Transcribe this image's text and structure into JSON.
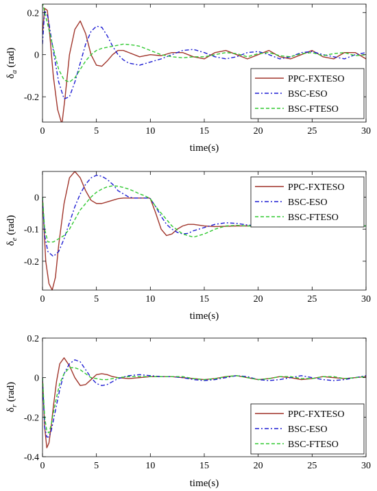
{
  "chart_data": [
    {
      "type": "line",
      "xlabel": "time(s)",
      "ylabel": "δa (rad)",
      "ylabel_main": "δ",
      "ylabel_sub": "a",
      "ylabel_unit": " (rad)",
      "xlim": [
        0,
        30
      ],
      "ylim": [
        -0.32,
        0.24
      ],
      "xticks": [
        0,
        5,
        10,
        15,
        20,
        25,
        30
      ],
      "yticks": [
        0.2,
        0,
        -0.2
      ],
      "ytick_labels": [
        "0.2",
        "0",
        "-0.2"
      ],
      "grid": false,
      "legend": "bottom-right",
      "series": [
        {
          "name": "PPC-FXTESO",
          "color": "#a0342a",
          "dash": "solid",
          "x": [
            0,
            0.2,
            0.45,
            0.7,
            1.0,
            1.4,
            1.8,
            2.1,
            2.5,
            3.0,
            3.5,
            4.0,
            4.5,
            5.0,
            5.5,
            6.0,
            6.5,
            7.0,
            7.5,
            8.0,
            9.0,
            10.0,
            11.0,
            12.0,
            13.0,
            14.0,
            15.0,
            16.0,
            17.0,
            18.0,
            19.0,
            20.0,
            21.0,
            22.0,
            23.0,
            24.0,
            25.0,
            26.0,
            27.0,
            28.0,
            29.0,
            30.0
          ],
          "y": [
            0.1,
            0.22,
            0.21,
            0.08,
            -0.1,
            -0.26,
            -0.33,
            -0.2,
            0.0,
            0.12,
            0.16,
            0.1,
            0.0,
            -0.05,
            -0.055,
            -0.03,
            0.0,
            0.02,
            0.02,
            0.01,
            -0.01,
            0.0,
            -0.005,
            0.01,
            0.01,
            -0.01,
            -0.02,
            0.01,
            0.02,
            0.0,
            -0.02,
            0.0,
            0.02,
            -0.01,
            -0.02,
            0.0,
            0.02,
            -0.01,
            -0.02,
            0.01,
            0.01,
            -0.02
          ]
        },
        {
          "name": "BSC-ESO",
          "color": "#1a1ad2",
          "dash": "6,3,2,3",
          "x": [
            0,
            0.2,
            0.5,
            1.0,
            1.5,
            2.0,
            2.5,
            3.0,
            3.5,
            4.0,
            4.5,
            5.0,
            5.5,
            6.0,
            6.5,
            7.0,
            7.5,
            8.0,
            9.0,
            10.0,
            11.0,
            12.0,
            13.0,
            14.0,
            15.0,
            16.0,
            17.0,
            18.0,
            19.0,
            20.0,
            21.0,
            22.0,
            23.0,
            24.0,
            25.0,
            26.0,
            27.0,
            28.0,
            29.0,
            30.0
          ],
          "y": [
            0.05,
            0.21,
            0.18,
            0.02,
            -0.13,
            -0.21,
            -0.2,
            -0.13,
            -0.04,
            0.05,
            0.11,
            0.135,
            0.13,
            0.09,
            0.04,
            0.0,
            -0.025,
            -0.04,
            -0.05,
            -0.035,
            -0.02,
            0.0,
            0.02,
            0.025,
            0.01,
            -0.01,
            -0.02,
            -0.01,
            0.01,
            0.015,
            0.0,
            -0.02,
            -0.01,
            0.01,
            0.015,
            0.0,
            -0.01,
            -0.02,
            0.0,
            0.01
          ]
        },
        {
          "name": "BSC-FTESO",
          "color": "#2fc82f",
          "dash": "5,3",
          "x": [
            0,
            0.2,
            0.5,
            1.0,
            1.5,
            2.0,
            2.5,
            3.0,
            3.5,
            4.0,
            4.5,
            5.0,
            5.5,
            6.0,
            6.5,
            7.0,
            7.5,
            8.0,
            8.5,
            9.0,
            10.0,
            11.0,
            12.0,
            13.0,
            14.0,
            15.0,
            16.0,
            17.0,
            18.0,
            19.0,
            20.0,
            21.0,
            22.0,
            23.0,
            24.0,
            25.0,
            26.0,
            27.0,
            28.0,
            29.0,
            30.0
          ],
          "y": [
            0.25,
            0.2,
            0.14,
            0.03,
            -0.07,
            -0.12,
            -0.13,
            -0.11,
            -0.07,
            -0.03,
            0.0,
            0.02,
            0.03,
            0.035,
            0.04,
            0.045,
            0.05,
            0.048,
            0.045,
            0.04,
            0.02,
            0.0,
            -0.01,
            -0.015,
            -0.01,
            -0.01,
            0.0,
            0.01,
            0.005,
            -0.01,
            0.005,
            0.01,
            -0.005,
            -0.01,
            0.005,
            0.01,
            -0.005,
            0.005,
            0.01,
            -0.005,
            0.0
          ]
        }
      ]
    },
    {
      "type": "line",
      "xlabel": "time(s)",
      "ylabel": "δe (rad)",
      "ylabel_main": "δ",
      "ylabel_sub": "e",
      "ylabel_unit": " (rad)",
      "xlim": [
        0,
        30
      ],
      "ylim": [
        -0.29,
        0.08
      ],
      "xticks": [
        0,
        5,
        10,
        15,
        20,
        25,
        30
      ],
      "yticks": [
        0,
        -0.1,
        -0.2
      ],
      "ytick_labels": [
        "0",
        "-0.1",
        "-0.2"
      ],
      "grid": false,
      "legend": "top-right",
      "series": [
        {
          "name": "PPC-FXTESO",
          "color": "#a0342a",
          "dash": "solid",
          "x": [
            0,
            0.3,
            0.6,
            0.9,
            1.2,
            1.5,
            2.0,
            2.5,
            3.0,
            3.5,
            4.0,
            4.5,
            5.0,
            5.5,
            6.0,
            6.5,
            7.0,
            7.5,
            8.0,
            8.5,
            9.0,
            9.9,
            10.0,
            10.5,
            11.0,
            11.5,
            12.0,
            12.5,
            13.0,
            13.5,
            14.0,
            15.0,
            16.0,
            18.0,
            20.0,
            22.0,
            25.0,
            28.0,
            30.0
          ],
          "y": [
            0.0,
            -0.2,
            -0.27,
            -0.29,
            -0.25,
            -0.15,
            -0.02,
            0.06,
            0.08,
            0.06,
            0.02,
            -0.01,
            -0.02,
            -0.02,
            -0.015,
            -0.01,
            -0.005,
            -0.003,
            -0.003,
            -0.003,
            -0.003,
            -0.003,
            -0.005,
            -0.05,
            -0.1,
            -0.12,
            -0.115,
            -0.1,
            -0.09,
            -0.085,
            -0.085,
            -0.09,
            -0.092,
            -0.09,
            -0.09,
            -0.09,
            -0.09,
            -0.09,
            -0.09
          ]
        },
        {
          "name": "BSC-ESO",
          "color": "#1a1ad2",
          "dash": "6,3,2,3",
          "x": [
            0,
            0.2,
            0.5,
            1.0,
            1.5,
            2.0,
            2.5,
            3.0,
            3.5,
            4.0,
            4.5,
            5.0,
            5.5,
            6.0,
            6.5,
            7.0,
            7.5,
            8.0,
            8.5,
            9.0,
            9.9,
            10.0,
            10.5,
            11.0,
            11.5,
            12.0,
            12.5,
            13.0,
            13.5,
            14.0,
            15.0,
            16.0,
            17.0,
            18.0,
            19.0,
            20.0,
            22.0,
            25.0,
            28.0,
            30.0
          ],
          "y": [
            0.0,
            -0.12,
            -0.17,
            -0.185,
            -0.17,
            -0.13,
            -0.08,
            -0.03,
            0.01,
            0.04,
            0.06,
            0.068,
            0.065,
            0.055,
            0.04,
            0.02,
            0.01,
            0.0,
            -0.003,
            -0.003,
            -0.003,
            -0.005,
            -0.03,
            -0.06,
            -0.085,
            -0.1,
            -0.11,
            -0.115,
            -0.113,
            -0.105,
            -0.095,
            -0.085,
            -0.08,
            -0.082,
            -0.087,
            -0.09,
            -0.092,
            -0.09,
            -0.09,
            -0.09
          ]
        },
        {
          "name": "BSC-FTESO",
          "color": "#2fc82f",
          "dash": "5,3",
          "x": [
            0,
            0.2,
            0.5,
            1.0,
            1.5,
            2.0,
            2.5,
            3.0,
            3.5,
            4.0,
            4.5,
            5.0,
            5.5,
            6.0,
            6.5,
            7.0,
            7.5,
            8.0,
            8.5,
            9.0,
            9.5,
            10.0,
            10.5,
            11.0,
            11.5,
            12.0,
            13.0,
            14.0,
            15.0,
            16.0,
            17.0,
            18.0,
            19.0,
            20.0,
            22.0,
            25.0,
            28.0,
            30.0
          ],
          "y": [
            0.0,
            -0.1,
            -0.14,
            -0.14,
            -0.13,
            -0.12,
            -0.1,
            -0.07,
            -0.04,
            -0.02,
            0.0,
            0.015,
            0.025,
            0.032,
            0.035,
            0.034,
            0.03,
            0.025,
            0.018,
            0.01,
            0.004,
            -0.005,
            -0.03,
            -0.05,
            -0.07,
            -0.09,
            -0.115,
            -0.125,
            -0.115,
            -0.1,
            -0.09,
            -0.088,
            -0.09,
            -0.09,
            -0.09,
            -0.09,
            -0.09,
            -0.09
          ]
        }
      ]
    },
    {
      "type": "line",
      "xlabel": "time(s)",
      "ylabel": "δr (rad)",
      "ylabel_main": "δ",
      "ylabel_sub": "r",
      "ylabel_unit": " (rad)",
      "xlim": [
        0,
        30
      ],
      "ylim": [
        -0.4,
        0.2
      ],
      "xticks": [
        0,
        5,
        10,
        15,
        20,
        25,
        30
      ],
      "yticks": [
        0.2,
        0,
        -0.2,
        -0.4
      ],
      "ytick_labels": [
        "0.2",
        "0",
        "-0.2",
        "-0.4"
      ],
      "grid": false,
      "legend": "bottom-right",
      "series": [
        {
          "name": "PPC-FXTESO",
          "color": "#a0342a",
          "dash": "solid",
          "x": [
            0,
            0.2,
            0.4,
            0.6,
            0.8,
            1.0,
            1.3,
            1.6,
            2.0,
            2.5,
            3.0,
            3.5,
            4.0,
            4.5,
            5.0,
            5.5,
            6.0,
            6.5,
            7.0,
            8.0,
            9.0,
            10.0,
            11.0,
            12.0,
            13.0,
            14.0,
            15.0,
            16.0,
            17.0,
            18.0,
            19.0,
            20.0,
            21.0,
            22.0,
            23.0,
            24.0,
            25.0,
            26.0,
            27.0,
            28.0,
            29.0,
            30.0
          ],
          "y": [
            0.0,
            -0.25,
            -0.355,
            -0.33,
            -0.25,
            -0.15,
            -0.02,
            0.07,
            0.1,
            0.06,
            0.0,
            -0.04,
            -0.035,
            -0.01,
            0.015,
            0.02,
            0.015,
            0.005,
            0.0,
            -0.005,
            0.0,
            0.005,
            0.005,
            0.005,
            0.0,
            -0.005,
            -0.01,
            -0.005,
            0.005,
            0.01,
            0.0,
            -0.01,
            -0.005,
            0.005,
            0.0,
            -0.01,
            -0.005,
            0.005,
            0.0,
            -0.005,
            0.0,
            0.005
          ]
        },
        {
          "name": "BSC-ESO",
          "color": "#1a1ad2",
          "dash": "6,3,2,3",
          "x": [
            0,
            0.2,
            0.4,
            0.6,
            0.8,
            1.0,
            1.3,
            1.6,
            2.0,
            2.5,
            3.0,
            3.5,
            4.0,
            4.5,
            5.0,
            5.5,
            6.0,
            6.5,
            7.0,
            8.0,
            9.0,
            10.0,
            11.0,
            12.0,
            13.0,
            14.0,
            15.0,
            16.0,
            17.0,
            18.0,
            19.0,
            20.0,
            21.0,
            22.0,
            23.0,
            24.0,
            25.0,
            26.0,
            27.0,
            28.0,
            29.0,
            30.0
          ],
          "y": [
            0.0,
            -0.25,
            -0.3,
            -0.3,
            -0.27,
            -0.22,
            -0.14,
            -0.06,
            0.02,
            0.07,
            0.09,
            0.08,
            0.04,
            0.0,
            -0.03,
            -0.04,
            -0.035,
            -0.02,
            -0.005,
            0.01,
            0.015,
            0.01,
            0.005,
            0.005,
            0.0,
            -0.01,
            -0.015,
            -0.01,
            0.0,
            0.01,
            0.005,
            -0.01,
            -0.015,
            -0.01,
            0.0,
            0.01,
            0.0,
            -0.01,
            -0.015,
            -0.01,
            0.0,
            0.01
          ]
        },
        {
          "name": "BSC-FTESO",
          "color": "#2fc82f",
          "dash": "5,3",
          "x": [
            0,
            0.2,
            0.4,
            0.6,
            0.8,
            1.0,
            1.3,
            1.6,
            2.0,
            2.5,
            3.0,
            3.5,
            4.0,
            4.5,
            5.0,
            5.5,
            6.0,
            6.5,
            7.0,
            8.0,
            9.0,
            10.0,
            11.0,
            12.0,
            13.0,
            14.0,
            15.0,
            16.0,
            17.0,
            18.0,
            19.0,
            20.0,
            21.0,
            22.0,
            23.0,
            24.0,
            25.0,
            26.0,
            27.0,
            28.0,
            29.0,
            30.0
          ],
          "y": [
            0.0,
            -0.2,
            -0.27,
            -0.28,
            -0.24,
            -0.18,
            -0.1,
            -0.03,
            0.02,
            0.05,
            0.05,
            0.04,
            0.02,
            0.0,
            -0.005,
            -0.01,
            -0.01,
            -0.005,
            0.0,
            0.005,
            0.005,
            0.005,
            0.005,
            0.005,
            0.005,
            -0.005,
            -0.01,
            -0.005,
            0.005,
            0.01,
            0.0,
            -0.01,
            -0.005,
            0.005,
            0.005,
            -0.005,
            -0.005,
            0.005,
            0.005,
            -0.005,
            0.0,
            0.005
          ]
        }
      ]
    }
  ]
}
